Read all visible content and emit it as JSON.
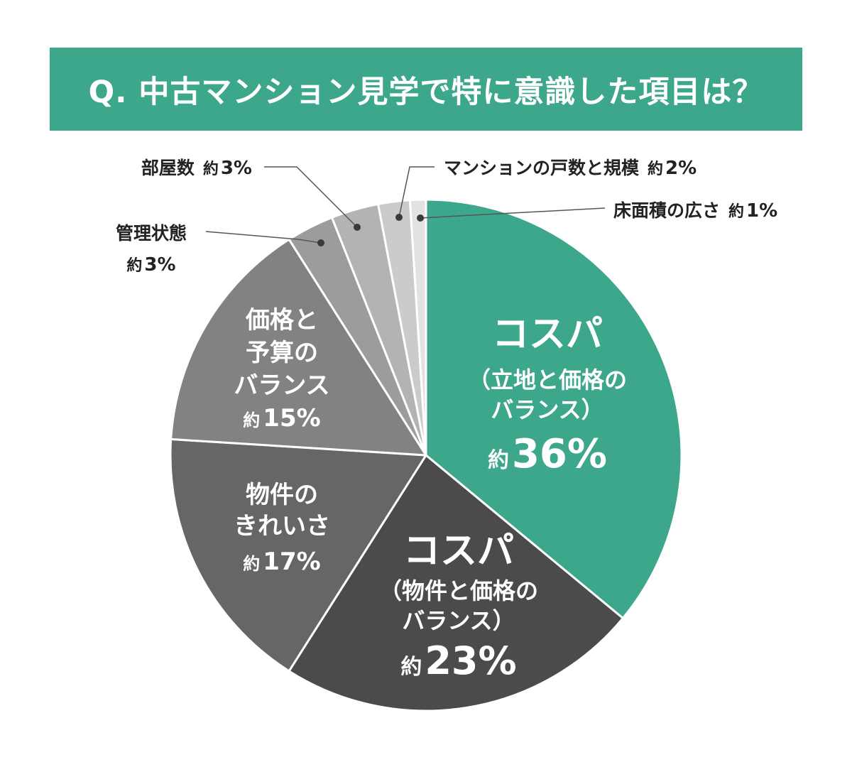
{
  "chart_data": {
    "type": "pie",
    "title": "Q. 中古マンション見学で特に意識した項目は？",
    "slices": [
      {
        "label_lines": [
          "コスパ",
          "（立地と価格の",
          "バランス）"
        ],
        "prefix": "約",
        "value": 36,
        "display": "36%",
        "color": "#3da78c",
        "text_color": "#ffffff"
      },
      {
        "label_lines": [
          "コスパ",
          "（物件と価格の",
          "バランス）"
        ],
        "prefix": "約",
        "value": 23,
        "display": "23%",
        "color": "#4b4b4b",
        "text_color": "#ffffff"
      },
      {
        "label_lines": [
          "物件の",
          "きれいさ"
        ],
        "prefix": "約",
        "value": 17,
        "display": "17%",
        "color": "#666666",
        "text_color": "#ffffff"
      },
      {
        "label_lines": [
          "価格と",
          "予算の",
          "バランス"
        ],
        "prefix": "約",
        "value": 15,
        "display": "15%",
        "color": "#828282",
        "text_color": "#ffffff"
      },
      {
        "label_lines": [
          "管理状態"
        ],
        "prefix": "約",
        "value": 3,
        "display": "3%",
        "color": "#9c9c9c",
        "text_color": "#222222"
      },
      {
        "label_lines": [
          "部屋数"
        ],
        "prefix": "約",
        "value": 3,
        "display": "3%",
        "color": "#b3b3b3",
        "text_color": "#222222"
      },
      {
        "label_lines": [
          "マンションの戸数と規模"
        ],
        "prefix": "約",
        "value": 2,
        "display": "2%",
        "color": "#cbcbcb",
        "text_color": "#222222"
      },
      {
        "label_lines": [
          "床面積の広さ"
        ],
        "prefix": "約",
        "value": 1,
        "display": "1%",
        "color": "#e2e2e2",
        "text_color": "#222222"
      }
    ]
  }
}
